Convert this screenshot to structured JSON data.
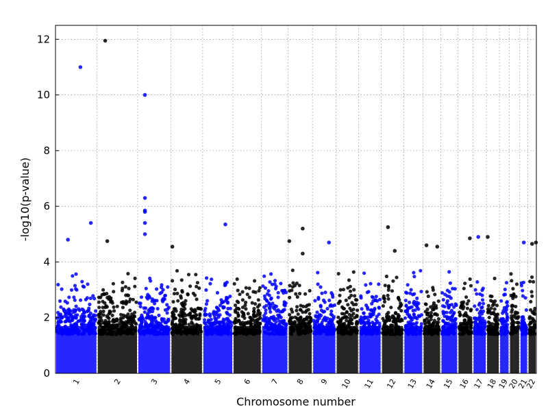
{
  "chart_data": {
    "type": "scatter",
    "title": "",
    "xlabel": "Chromosome number",
    "ylabel": "-log10(p-value)",
    "ylim": [
      0,
      12.5
    ],
    "yticks": [
      0,
      2,
      4,
      6,
      8,
      10,
      12
    ],
    "grid": true,
    "colors": {
      "blue": "#0000ff",
      "black": "#000000"
    },
    "chromosomes": [
      {
        "label": "1",
        "color": "blue",
        "max": 11.0,
        "size": 249
      },
      {
        "label": "2",
        "color": "black",
        "max": 11.95,
        "size": 243
      },
      {
        "label": "3",
        "color": "blue",
        "max": 10.0,
        "size": 198
      },
      {
        "label": "4",
        "color": "black",
        "max": 4.55,
        "size": 191
      },
      {
        "label": "5",
        "color": "blue",
        "max": 5.35,
        "size": 181
      },
      {
        "label": "6",
        "color": "black",
        "max": 4.1,
        "size": 171
      },
      {
        "label": "7",
        "color": "blue",
        "max": 3.85,
        "size": 159
      },
      {
        "label": "8",
        "color": "black",
        "max": 5.2,
        "size": 146
      },
      {
        "label": "9",
        "color": "blue",
        "max": 4.7,
        "size": 141
      },
      {
        "label": "10",
        "color": "black",
        "max": 4.3,
        "size": 136
      },
      {
        "label": "11",
        "color": "blue",
        "max": 4.4,
        "size": 135
      },
      {
        "label": "12",
        "color": "black",
        "max": 5.25,
        "size": 134
      },
      {
        "label": "13",
        "color": "blue",
        "max": 4.3,
        "size": 115
      },
      {
        "label": "14",
        "color": "black",
        "max": 4.6,
        "size": 107
      },
      {
        "label": "15",
        "color": "blue",
        "max": 3.9,
        "size": 102
      },
      {
        "label": "16",
        "color": "black",
        "max": 4.85,
        "size": 90
      },
      {
        "label": "17",
        "color": "blue",
        "max": 4.9,
        "size": 81
      },
      {
        "label": "18",
        "color": "black",
        "max": 4.9,
        "size": 78
      },
      {
        "label": "19",
        "color": "blue",
        "max": 4.05,
        "size": 59
      },
      {
        "label": "20",
        "color": "black",
        "max": 3.85,
        "size": 63
      },
      {
        "label": "21",
        "color": "blue",
        "max": 4.7,
        "size": 48
      },
      {
        "label": "22",
        "color": "black",
        "max": 4.7,
        "size": 51
      }
    ],
    "notable_points": [
      {
        "chrom": "1",
        "pos": 0.6,
        "y": 11.0,
        "color": "blue"
      },
      {
        "chrom": "1",
        "pos": 0.3,
        "y": 4.8,
        "color": "blue"
      },
      {
        "chrom": "1",
        "pos": 0.85,
        "y": 5.4,
        "color": "blue"
      },
      {
        "chrom": "2",
        "pos": 0.2,
        "y": 11.95,
        "color": "black"
      },
      {
        "chrom": "2",
        "pos": 0.25,
        "y": 4.75,
        "color": "black"
      },
      {
        "chrom": "3",
        "pos": 0.22,
        "y": 10.0,
        "color": "blue"
      },
      {
        "chrom": "3",
        "pos": 0.22,
        "y": 6.3,
        "color": "blue"
      },
      {
        "chrom": "3",
        "pos": 0.22,
        "y": 5.85,
        "color": "blue"
      },
      {
        "chrom": "3",
        "pos": 0.22,
        "y": 5.8,
        "color": "blue"
      },
      {
        "chrom": "3",
        "pos": 0.22,
        "y": 5.4,
        "color": "blue"
      },
      {
        "chrom": "3",
        "pos": 0.22,
        "y": 5.0,
        "color": "blue"
      },
      {
        "chrom": "4",
        "pos": 0.05,
        "y": 4.55,
        "color": "black"
      },
      {
        "chrom": "5",
        "pos": 0.75,
        "y": 5.35,
        "color": "blue"
      },
      {
        "chrom": "8",
        "pos": 0.6,
        "y": 5.2,
        "color": "black"
      },
      {
        "chrom": "8",
        "pos": 0.05,
        "y": 4.75,
        "color": "black"
      },
      {
        "chrom": "8",
        "pos": 0.6,
        "y": 4.3,
        "color": "black"
      },
      {
        "chrom": "9",
        "pos": 0.7,
        "y": 4.7,
        "color": "blue"
      },
      {
        "chrom": "12",
        "pos": 0.3,
        "y": 5.25,
        "color": "black"
      },
      {
        "chrom": "12",
        "pos": 0.6,
        "y": 4.4,
        "color": "black"
      },
      {
        "chrom": "14",
        "pos": 0.2,
        "y": 4.6,
        "color": "black"
      },
      {
        "chrom": "14",
        "pos": 0.8,
        "y": 4.55,
        "color": "black"
      },
      {
        "chrom": "16",
        "pos": 0.8,
        "y": 4.85,
        "color": "black"
      },
      {
        "chrom": "17",
        "pos": 0.4,
        "y": 4.9,
        "color": "blue"
      },
      {
        "chrom": "18",
        "pos": 0.1,
        "y": 4.9,
        "color": "black"
      },
      {
        "chrom": "21",
        "pos": 0.5,
        "y": 4.7,
        "color": "blue"
      },
      {
        "chrom": "22",
        "pos": 0.5,
        "y": 4.65,
        "color": "black"
      },
      {
        "chrom": "22",
        "pos": 0.95,
        "y": 4.7,
        "color": "black"
      }
    ]
  }
}
